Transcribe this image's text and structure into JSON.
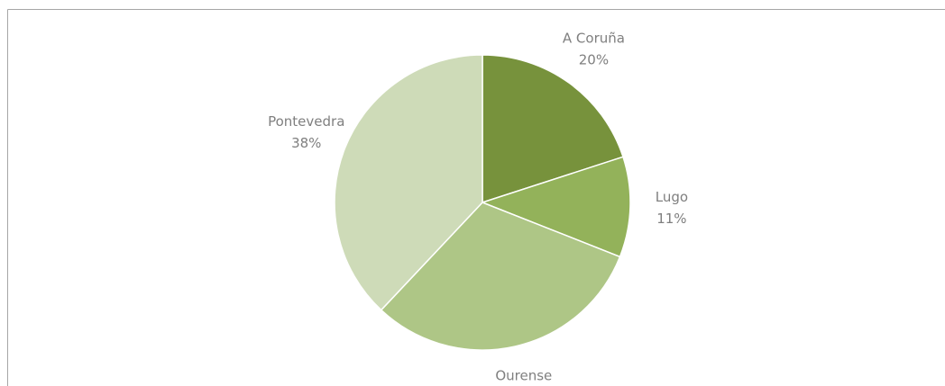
{
  "chart_data": {
    "type": "pie",
    "categories": [
      "A Coruña",
      "Lugo",
      "Ourense",
      "Pontevedra"
    ],
    "values": [
      20,
      11,
      31,
      38
    ],
    "value_labels": [
      "20%",
      "11%",
      "31%",
      "38%"
    ],
    "colors": [
      "#77923c",
      "#93b25a",
      "#aec686",
      "#cedbb8"
    ]
  }
}
